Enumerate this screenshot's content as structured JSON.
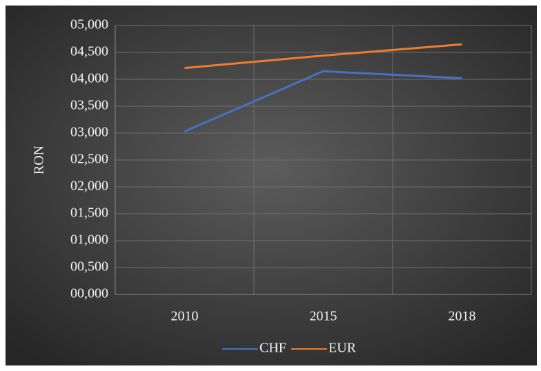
{
  "chart_data": {
    "type": "line",
    "y_label": "RON",
    "categories": [
      "2010",
      "2015",
      "2018"
    ],
    "series": [
      {
        "name": "CHF",
        "color": "#4472c4",
        "values": [
          3.03,
          4.15,
          4.02
        ]
      },
      {
        "name": "EUR",
        "color": "#ed7d31",
        "values": [
          4.21,
          4.44,
          4.65
        ]
      }
    ],
    "ylim": [
      0,
      5
    ],
    "yticks": [
      {
        "value": 0,
        "label": "00,000"
      },
      {
        "value": 0.5,
        "label": "00,500"
      },
      {
        "value": 1,
        "label": "01,000"
      },
      {
        "value": 1.5,
        "label": "01,500"
      },
      {
        "value": 2,
        "label": "02,000"
      },
      {
        "value": 2.5,
        "label": "02,500"
      },
      {
        "value": 3,
        "label": "03,000"
      },
      {
        "value": 3.5,
        "label": "03,500"
      },
      {
        "value": 4,
        "label": "04,000"
      },
      {
        "value": 4.5,
        "label": "04,500"
      },
      {
        "value": 5,
        "label": "05,000"
      }
    ],
    "grid": true,
    "legend": "bottom"
  }
}
